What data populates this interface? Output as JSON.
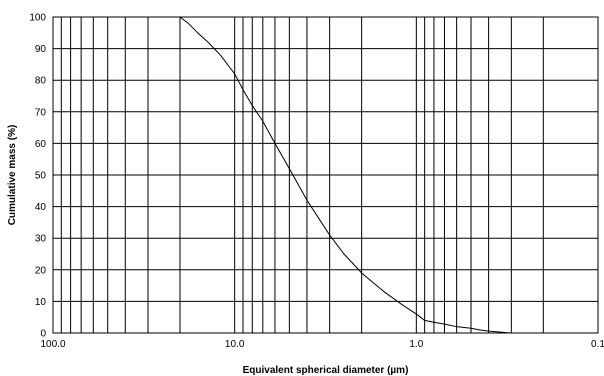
{
  "chart_data": {
    "type": "line",
    "xscale": "log",
    "x_reversed": true,
    "xlim": [
      100.0,
      0.1
    ],
    "ylim": [
      0,
      100
    ],
    "xlabel": "Equivalent spherical diameter (µm)",
    "ylabel": "Cumulative mass (%)",
    "x_ticks": [
      "100.0",
      "10.0",
      "1.0",
      "0.1"
    ],
    "y_ticks": [
      "0",
      "10",
      "20",
      "30",
      "40",
      "50",
      "60",
      "70",
      "80",
      "90",
      "100"
    ],
    "grid": true,
    "line_color": "#000000",
    "series": [
      {
        "x": [
          20.0,
          18.0,
          16.0,
          14.0,
          12.0,
          10.0,
          9.0,
          8.0,
          7.0,
          6.0,
          5.0,
          4.0,
          3.0,
          2.5,
          2.0,
          1.5,
          1.2,
          1.0,
          0.9,
          0.8,
          0.7,
          0.6,
          0.5,
          0.45,
          0.4,
          0.35,
          0.3
        ],
        "y": [
          100,
          98,
          95,
          92,
          88,
          82,
          77,
          72,
          67,
          60,
          52,
          42,
          31,
          25,
          19,
          13,
          9,
          6,
          4,
          3.4,
          2.8,
          2.0,
          1.5,
          1.0,
          0.6,
          0.3,
          0
        ]
      }
    ]
  }
}
